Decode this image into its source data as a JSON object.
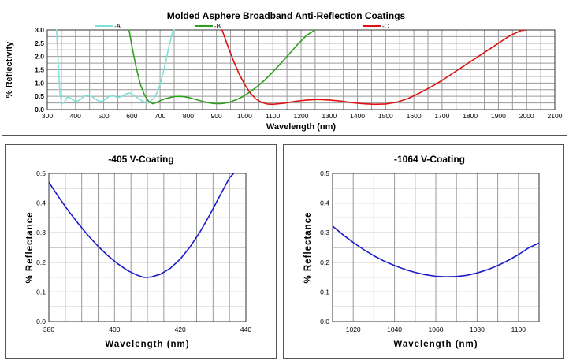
{
  "chart_data": [
    {
      "type": "line",
      "title": "Molded Asphere Broadband Anti-Reflection Coatings",
      "xlabel": "Wavelength (nm)",
      "ylabel": "% Reflectivity",
      "xlim": [
        300,
        2100
      ],
      "ylim": [
        0,
        3.0
      ],
      "xticks": [
        "300",
        "400",
        "500",
        "600",
        "700",
        "800",
        "900",
        "1000",
        "1100",
        "1200",
        "1300",
        "1400",
        "1500",
        "1600",
        "1700",
        "1800",
        "1900",
        "2000",
        "2100"
      ],
      "yticks": [
        "0.0",
        "0.5",
        "1.0",
        "1.5",
        "2.0",
        "2.5",
        "3.0"
      ],
      "grid": true,
      "legend": "top",
      "series": [
        {
          "name": "-A",
          "color": "#7fe0d8",
          "x": [
            333,
            340,
            345,
            352,
            360,
            372,
            385,
            400,
            415,
            430,
            445,
            460,
            475,
            490,
            505,
            520,
            535,
            550,
            565,
            580,
            595,
            610,
            625,
            640,
            655,
            665,
            680,
            690,
            700,
            710,
            720,
            730,
            740,
            745,
            750
          ],
          "y": [
            3.0,
            1.5,
            0.6,
            0.22,
            0.28,
            0.48,
            0.42,
            0.3,
            0.36,
            0.5,
            0.55,
            0.48,
            0.36,
            0.3,
            0.38,
            0.5,
            0.52,
            0.45,
            0.5,
            0.6,
            0.62,
            0.52,
            0.4,
            0.3,
            0.25,
            0.3,
            0.45,
            0.65,
            0.95,
            1.35,
            1.8,
            2.3,
            2.75,
            2.95,
            3.0
          ]
        },
        {
          "name": "-B",
          "color": "#2f9e1e",
          "x": [
            590,
            600,
            615,
            630,
            645,
            660,
            675,
            690,
            710,
            730,
            750,
            770,
            790,
            810,
            830,
            850,
            870,
            890,
            910,
            930,
            950,
            970,
            990,
            1010,
            1040,
            1070,
            1100,
            1130,
            1160,
            1190,
            1220,
            1250
          ],
          "y": [
            3.0,
            2.4,
            1.6,
            0.95,
            0.55,
            0.3,
            0.22,
            0.28,
            0.38,
            0.44,
            0.49,
            0.5,
            0.48,
            0.43,
            0.37,
            0.31,
            0.26,
            0.23,
            0.22,
            0.24,
            0.29,
            0.37,
            0.47,
            0.6,
            0.83,
            1.1,
            1.42,
            1.76,
            2.12,
            2.48,
            2.8,
            3.0
          ]
        },
        {
          "name": "-C",
          "color": "#e01010",
          "x": [
            920,
            940,
            960,
            980,
            1000,
            1020,
            1040,
            1060,
            1080,
            1100,
            1140,
            1180,
            1220,
            1260,
            1300,
            1340,
            1380,
            1420,
            1460,
            1500,
            1540,
            1580,
            1620,
            1660,
            1700,
            1740,
            1780,
            1820,
            1860,
            1900,
            1940,
            1980,
            1995
          ],
          "y": [
            3.0,
            2.4,
            1.85,
            1.35,
            0.95,
            0.62,
            0.4,
            0.27,
            0.21,
            0.2,
            0.24,
            0.31,
            0.36,
            0.38,
            0.36,
            0.32,
            0.26,
            0.22,
            0.2,
            0.21,
            0.28,
            0.42,
            0.62,
            0.85,
            1.1,
            1.38,
            1.66,
            1.94,
            2.22,
            2.5,
            2.78,
            2.98,
            3.0
          ]
        }
      ]
    },
    {
      "type": "line",
      "title": "-405 V-Coating",
      "xlabel": "Wavelength (nm)",
      "ylabel": "% Reflectance",
      "xlim": [
        380,
        440
      ],
      "ylim": [
        0,
        0.5
      ],
      "xticks": [
        "380",
        "400",
        "420",
        "440"
      ],
      "yticks": [
        "0.0",
        "0.1",
        "0.2",
        "0.3",
        "0.4",
        "0.5"
      ],
      "grid": true,
      "series": [
        {
          "color": "#1a1acc",
          "x": [
            380,
            383,
            386,
            389,
            392,
            395,
            398,
            401,
            404,
            407,
            409,
            411,
            414,
            417,
            420,
            423,
            426,
            429,
            432,
            435,
            436.3
          ],
          "y": [
            0.47,
            0.42,
            0.373,
            0.33,
            0.29,
            0.254,
            0.222,
            0.195,
            0.172,
            0.156,
            0.149,
            0.15,
            0.16,
            0.18,
            0.211,
            0.252,
            0.302,
            0.36,
            0.423,
            0.485,
            0.5
          ]
        }
      ]
    },
    {
      "type": "line",
      "title": "-1064 V-Coating",
      "xlabel": "Wavelength (nm)",
      "ylabel": "% Reflectance",
      "xlim": [
        1010,
        1110
      ],
      "ylim": [
        0,
        0.5
      ],
      "xticks": [
        "1020",
        "1040",
        "1060",
        "1080",
        "1100"
      ],
      "yticks": [
        "0.0",
        "0.1",
        "0.2",
        "0.3",
        "0.4",
        "0.5"
      ],
      "grid": true,
      "series": [
        {
          "color": "#1a1acc",
          "x": [
            1010,
            1015,
            1020,
            1025,
            1030,
            1035,
            1040,
            1045,
            1050,
            1055,
            1060,
            1065,
            1070,
            1075,
            1080,
            1085,
            1090,
            1095,
            1100,
            1105,
            1110
          ],
          "y": [
            0.322,
            0.293,
            0.267,
            0.243,
            0.222,
            0.204,
            0.189,
            0.176,
            0.166,
            0.158,
            0.153,
            0.151,
            0.152,
            0.156,
            0.164,
            0.175,
            0.189,
            0.206,
            0.226,
            0.249,
            0.265
          ]
        }
      ]
    }
  ]
}
